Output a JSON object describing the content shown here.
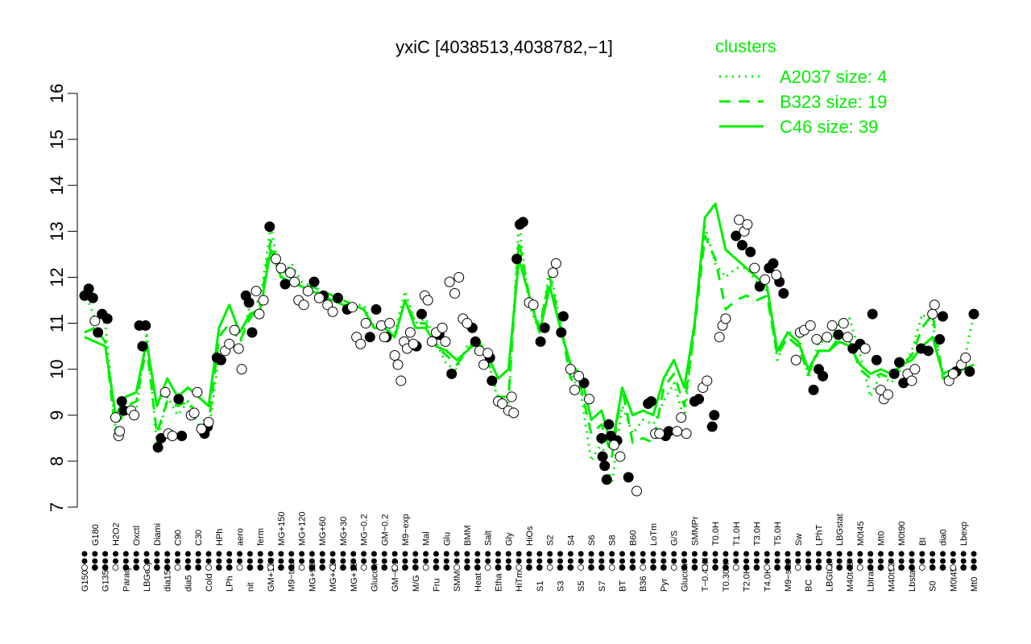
{
  "chart_data": {
    "type": "line",
    "title": "yxiC [4038513,4038782,−1]",
    "xlabel": "",
    "ylabel": "",
    "ylim": [
      7,
      16
    ],
    "yticks": [
      7,
      8,
      9,
      10,
      11,
      12,
      13,
      14,
      15,
      16
    ],
    "grid": false,
    "legend": {
      "position": "top-right",
      "title": "clusters",
      "color": "#00ee00",
      "entries": [
        {
          "label": "A2037 size: 4",
          "style": "dotted"
        },
        {
          "label": "B323 size: 19",
          "style": "dashed"
        },
        {
          "label": "C46 size: 39",
          "style": "solid"
        }
      ]
    },
    "x_tick_labels": [
      "G150",
      "G180",
      "G135",
      "H2O2",
      "Paraq",
      "Oxctl",
      "LBGexp",
      "Diami",
      "dia15",
      "C90",
      "dia5",
      "C30",
      "Cold",
      "HPh",
      "LPh",
      "aero",
      "nit",
      "ferm",
      "GM+150",
      "MG+150",
      "M9−tran",
      "MG+120",
      "MG+90",
      "MG+60",
      "MG+45",
      "MG+30",
      "MG+15",
      "MG−0.2",
      "Glucon",
      "GM−0.2",
      "GM−0.1",
      "M9−exp",
      "M/G",
      "Mal",
      "Fru",
      "Glu",
      "SMM",
      "BMM",
      "Heat",
      "Salt",
      "Etha",
      "Gly",
      "HiTm",
      "HiOs",
      "S1",
      "S2",
      "S3",
      "S4",
      "S5",
      "S6",
      "S7",
      "S8",
      "BT",
      "B60",
      "B36",
      "LoTm",
      "Pyr",
      "G/S",
      "Glucon",
      "SMMPr",
      "T−0.40H",
      "T0.0H",
      "T0.30H",
      "T1.0H",
      "T2.0H",
      "T3.0H",
      "T4.0H",
      "T5.0H",
      "M9−stat",
      "Sw",
      "BC",
      "LPhT",
      "LBGtran",
      "LBGstat",
      "M40t45",
      "M0t45",
      "Lbtran",
      "Mt0",
      "M40t90",
      "M0t90",
      "Lbstat",
      "BI",
      "S0",
      "dia0",
      "M0t45",
      "Lbexp",
      "Mt0"
    ],
    "x": [
      1,
      2,
      3,
      4,
      5,
      6,
      7,
      8,
      9,
      10,
      11,
      12,
      13,
      14,
      15,
      16,
      17,
      18,
      19,
      20,
      21,
      22,
      23,
      24,
      25,
      26,
      27,
      28,
      29,
      30,
      31,
      32,
      33,
      34,
      35,
      36,
      37,
      38,
      39,
      40,
      41,
      42,
      43,
      44,
      45,
      46,
      47,
      48,
      49,
      50,
      51,
      52,
      53,
      54,
      55,
      56,
      57,
      58,
      59,
      60,
      61,
      62,
      63,
      64,
      65,
      66,
      67,
      68,
      69,
      70,
      71,
      72,
      73,
      74,
      75,
      76,
      77,
      78,
      79,
      80,
      81,
      82,
      83,
      84,
      85,
      86,
      87
    ],
    "series": [
      {
        "style": "dotted",
        "values": [
          11.7,
          11.1,
          11.0,
          8.7,
          9.2,
          9.1,
          10.8,
          8.4,
          9.4,
          9.0,
          9.3,
          8.8,
          8.6,
          10.3,
          10.5,
          10.5,
          11.4,
          11.5,
          13.1,
          12.0,
          12.3,
          11.9,
          11.8,
          11.6,
          11.5,
          11.5,
          11.4,
          11.4,
          10.9,
          10.9,
          10.8,
          11.7,
          11.0,
          11.1,
          10.6,
          10.1,
          10.0,
          10.5,
          10.7,
          10.2,
          9.3,
          9.2,
          13.2,
          11.4,
          10.8,
          12.2,
          11.0,
          9.9,
          9.5,
          8.0,
          8.4,
          7.5,
          9.2,
          8.6,
          8.9,
          8.8,
          9.3,
          9.7,
          8.9,
          11.0,
          13.1,
          12.3,
          12.0,
          12.2,
          12.2,
          11.9,
          11.7,
          10.2,
          10.8,
          10.8,
          9.8,
          10.6,
          10.6,
          11.0,
          11.1,
          10.3,
          9.4,
          9.9,
          9.7,
          10.0,
          10.4,
          11.2,
          11.0,
          9.9,
          9.9,
          10.1,
          11.2
        ],
        "color": "#00ee00"
      },
      {
        "style": "dashed",
        "values": [
          10.8,
          10.9,
          10.6,
          8.6,
          9.2,
          9.3,
          10.5,
          8.6,
          9.3,
          9.2,
          9.3,
          9.0,
          8.8,
          10.7,
          11.0,
          10.6,
          11.1,
          11.4,
          12.8,
          12.0,
          12.0,
          11.8,
          11.8,
          11.7,
          11.6,
          11.5,
          11.4,
          11.3,
          10.9,
          10.9,
          10.7,
          11.5,
          11.0,
          11.0,
          10.5,
          10.3,
          10.1,
          10.4,
          10.7,
          10.2,
          9.4,
          9.4,
          12.8,
          11.6,
          10.9,
          12.0,
          11.0,
          9.8,
          9.6,
          8.6,
          8.8,
          8.1,
          9.6,
          8.4,
          8.5,
          8.4,
          9.6,
          9.9,
          9.2,
          10.9,
          12.9,
          12.4,
          11.3,
          11.5,
          11.6,
          11.5,
          11.6,
          10.3,
          10.7,
          10.5,
          9.9,
          10.4,
          10.4,
          10.7,
          10.6,
          10.0,
          9.8,
          9.9,
          9.8,
          10.1,
          10.3,
          10.9,
          11.2,
          9.8,
          9.9,
          10.0,
          10.1
        ],
        "color": "#00ee00"
      },
      {
        "style": "solid",
        "values": [
          10.7,
          10.6,
          10.5,
          9.0,
          9.4,
          9.5,
          10.6,
          9.2,
          9.8,
          9.4,
          9.6,
          9.4,
          9.2,
          10.9,
          11.4,
          10.8,
          11.2,
          11.3,
          12.6,
          12.0,
          11.9,
          11.8,
          11.7,
          11.6,
          11.5,
          11.4,
          11.4,
          11.3,
          10.9,
          10.9,
          10.7,
          11.5,
          10.9,
          10.9,
          10.5,
          10.4,
          10.2,
          10.4,
          10.6,
          10.3,
          9.8,
          10.0,
          12.4,
          11.6,
          10.8,
          11.8,
          10.9,
          10.1,
          9.9,
          8.9,
          9.1,
          8.3,
          9.6,
          9.0,
          9.1,
          9.0,
          9.8,
          10.2,
          9.6,
          11.0,
          13.3,
          13.6,
          12.6,
          12.4,
          12.2,
          12.0,
          11.8,
          10.4,
          10.8,
          10.6,
          10.0,
          10.4,
          10.4,
          10.6,
          10.5,
          10.1,
          9.9,
          10.0,
          9.9,
          10.1,
          10.2,
          10.5,
          10.7,
          9.9,
          10.0,
          10.0,
          10.1
        ],
        "color": "#00ee00"
      }
    ],
    "points_filled": [
      {
        "x": 1,
        "y": 11.6
      },
      {
        "x": 1.4,
        "y": 11.75
      },
      {
        "x": 1.8,
        "y": 11.55
      },
      {
        "x": 2.3,
        "y": 10.8
      },
      {
        "x": 2.7,
        "y": 11.2
      },
      {
        "x": 3.2,
        "y": 11.1
      },
      {
        "x": 4.6,
        "y": 9.3
      },
      {
        "x": 4.8,
        "y": 9.1
      },
      {
        "x": 6.3,
        "y": 10.95
      },
      {
        "x": 6.6,
        "y": 10.5
      },
      {
        "x": 6.9,
        "y": 10.95
      },
      {
        "x": 8.1,
        "y": 8.3
      },
      {
        "x": 8.4,
        "y": 8.5
      },
      {
        "x": 10.1,
        "y": 9.35
      },
      {
        "x": 10.4,
        "y": 8.55
      },
      {
        "x": 12.6,
        "y": 8.6
      },
      {
        "x": 12.9,
        "y": 8.75
      },
      {
        "x": 13.8,
        "y": 10.25
      },
      {
        "x": 14.2,
        "y": 10.2
      },
      {
        "x": 16.6,
        "y": 11.6
      },
      {
        "x": 16.9,
        "y": 11.45
      },
      {
        "x": 17.2,
        "y": 10.8
      },
      {
        "x": 18.9,
        "y": 13.1
      },
      {
        "x": 20.4,
        "y": 11.85
      },
      {
        "x": 23.2,
        "y": 11.9
      },
      {
        "x": 24.1,
        "y": 11.6
      },
      {
        "x": 25.5,
        "y": 11.55
      },
      {
        "x": 26.4,
        "y": 11.3
      },
      {
        "x": 28.6,
        "y": 10.7
      },
      {
        "x": 29.2,
        "y": 11.3
      },
      {
        "x": 30.2,
        "y": 10.7
      },
      {
        "x": 33.1,
        "y": 10.5
      },
      {
        "x": 33.6,
        "y": 11.2
      },
      {
        "x": 35.3,
        "y": 10.75
      },
      {
        "x": 36.5,
        "y": 9.9
      },
      {
        "x": 38.5,
        "y": 10.9
      },
      {
        "x": 38.8,
        "y": 10.6
      },
      {
        "x": 40.2,
        "y": 10.25
      },
      {
        "x": 40.4,
        "y": 9.75
      },
      {
        "x": 43.1,
        "y": 13.15
      },
      {
        "x": 43.4,
        "y": 13.2
      },
      {
        "x": 42.8,
        "y": 12.4
      },
      {
        "x": 45.1,
        "y": 10.6
      },
      {
        "x": 45.5,
        "y": 10.9
      },
      {
        "x": 47.3,
        "y": 11.15
      },
      {
        "x": 47.1,
        "y": 10.8
      },
      {
        "x": 49.3,
        "y": 9.7
      },
      {
        "x": 51.0,
        "y": 8.5
      },
      {
        "x": 51.1,
        "y": 8.1
      },
      {
        "x": 51.3,
        "y": 7.9
      },
      {
        "x": 51.5,
        "y": 7.6
      },
      {
        "x": 51.7,
        "y": 8.8
      },
      {
        "x": 51.9,
        "y": 8.55
      },
      {
        "x": 52.5,
        "y": 8.45
      },
      {
        "x": 53.6,
        "y": 7.65
      },
      {
        "x": 55.5,
        "y": 9.25
      },
      {
        "x": 55.8,
        "y": 9.3
      },
      {
        "x": 57.2,
        "y": 8.55
      },
      {
        "x": 57.5,
        "y": 8.65
      },
      {
        "x": 60.0,
        "y": 9.3
      },
      {
        "x": 60.4,
        "y": 9.35
      },
      {
        "x": 61.7,
        "y": 8.75
      },
      {
        "x": 61.9,
        "y": 9.0
      },
      {
        "x": 64.0,
        "y": 12.9
      },
      {
        "x": 64.6,
        "y": 12.7
      },
      {
        "x": 65.4,
        "y": 12.55
      },
      {
        "x": 66.3,
        "y": 11.8
      },
      {
        "x": 67.2,
        "y": 12.2
      },
      {
        "x": 67.6,
        "y": 12.3
      },
      {
        "x": 68.2,
        "y": 11.9
      },
      {
        "x": 68.6,
        "y": 11.65
      },
      {
        "x": 72.4,
        "y": 9.85
      },
      {
        "x": 72.0,
        "y": 10.0
      },
      {
        "x": 71.5,
        "y": 9.55
      },
      {
        "x": 73.9,
        "y": 10.75
      },
      {
        "x": 75.3,
        "y": 10.45
      },
      {
        "x": 76.0,
        "y": 10.55
      },
      {
        "x": 77.2,
        "y": 11.2
      },
      {
        "x": 77.6,
        "y": 10.2
      },
      {
        "x": 79.3,
        "y": 9.9
      },
      {
        "x": 79.8,
        "y": 10.15
      },
      {
        "x": 80.2,
        "y": 9.7
      },
      {
        "x": 81.9,
        "y": 10.45
      },
      {
        "x": 82.6,
        "y": 10.4
      },
      {
        "x": 83.7,
        "y": 10.65
      },
      {
        "x": 84.0,
        "y": 11.15
      },
      {
        "x": 85.3,
        "y": 9.95
      },
      {
        "x": 86.6,
        "y": 9.95
      },
      {
        "x": 87.0,
        "y": 11.2
      }
    ],
    "points_open": [
      {
        "x": 2.0,
        "y": 11.05
      },
      {
        "x": 4.0,
        "y": 8.95
      },
      {
        "x": 4.3,
        "y": 8.55
      },
      {
        "x": 4.4,
        "y": 8.65
      },
      {
        "x": 5.5,
        "y": 9.1
      },
      {
        "x": 5.8,
        "y": 9.0
      },
      {
        "x": 8.8,
        "y": 9.5
      },
      {
        "x": 9.1,
        "y": 8.6
      },
      {
        "x": 9.5,
        "y": 8.55
      },
      {
        "x": 11.3,
        "y": 9.0
      },
      {
        "x": 11.6,
        "y": 9.05
      },
      {
        "x": 11.9,
        "y": 9.5
      },
      {
        "x": 12.3,
        "y": 8.7
      },
      {
        "x": 13.0,
        "y": 8.85
      },
      {
        "x": 14.6,
        "y": 10.4
      },
      {
        "x": 15.0,
        "y": 10.55
      },
      {
        "x": 15.5,
        "y": 10.85
      },
      {
        "x": 15.9,
        "y": 10.45
      },
      {
        "x": 16.2,
        "y": 10.0
      },
      {
        "x": 17.6,
        "y": 11.7
      },
      {
        "x": 17.9,
        "y": 11.2
      },
      {
        "x": 18.3,
        "y": 11.5
      },
      {
        "x": 19.5,
        "y": 12.4
      },
      {
        "x": 20.0,
        "y": 12.2
      },
      {
        "x": 20.9,
        "y": 12.1
      },
      {
        "x": 21.3,
        "y": 11.9
      },
      {
        "x": 21.7,
        "y": 11.5
      },
      {
        "x": 22.2,
        "y": 11.4
      },
      {
        "x": 22.6,
        "y": 11.7
      },
      {
        "x": 23.7,
        "y": 11.55
      },
      {
        "x": 24.5,
        "y": 11.4
      },
      {
        "x": 25.0,
        "y": 11.25
      },
      {
        "x": 26.9,
        "y": 11.35
      },
      {
        "x": 27.3,
        "y": 10.7
      },
      {
        "x": 27.7,
        "y": 10.55
      },
      {
        "x": 28.2,
        "y": 11.0
      },
      {
        "x": 29.7,
        "y": 10.95
      },
      {
        "x": 30.0,
        "y": 10.7
      },
      {
        "x": 30.5,
        "y": 11.0
      },
      {
        "x": 31.0,
        "y": 10.3
      },
      {
        "x": 31.3,
        "y": 10.1
      },
      {
        "x": 31.6,
        "y": 9.75
      },
      {
        "x": 31.9,
        "y": 10.6
      },
      {
        "x": 32.2,
        "y": 10.45
      },
      {
        "x": 32.5,
        "y": 10.8
      },
      {
        "x": 32.8,
        "y": 10.55
      },
      {
        "x": 33.9,
        "y": 11.6
      },
      {
        "x": 34.2,
        "y": 11.5
      },
      {
        "x": 34.6,
        "y": 10.6
      },
      {
        "x": 35.0,
        "y": 10.8
      },
      {
        "x": 35.6,
        "y": 10.9
      },
      {
        "x": 35.9,
        "y": 10.6
      },
      {
        "x": 36.3,
        "y": 11.9
      },
      {
        "x": 36.8,
        "y": 11.65
      },
      {
        "x": 37.2,
        "y": 12.0
      },
      {
        "x": 37.6,
        "y": 11.1
      },
      {
        "x": 38.0,
        "y": 11.0
      },
      {
        "x": 39.2,
        "y": 10.4
      },
      {
        "x": 39.6,
        "y": 10.1
      },
      {
        "x": 40.0,
        "y": 10.35
      },
      {
        "x": 41.0,
        "y": 9.3
      },
      {
        "x": 41.4,
        "y": 9.25
      },
      {
        "x": 42.0,
        "y": 9.1
      },
      {
        "x": 42.3,
        "y": 9.4
      },
      {
        "x": 42.5,
        "y": 9.05
      },
      {
        "x": 44.0,
        "y": 11.45
      },
      {
        "x": 44.4,
        "y": 11.4
      },
      {
        "x": 46.3,
        "y": 12.1
      },
      {
        "x": 46.6,
        "y": 12.3
      },
      {
        "x": 48.0,
        "y": 10.0
      },
      {
        "x": 48.4,
        "y": 9.55
      },
      {
        "x": 48.8,
        "y": 9.85
      },
      {
        "x": 49.8,
        "y": 9.35
      },
      {
        "x": 52.2,
        "y": 8.35
      },
      {
        "x": 52.8,
        "y": 8.1
      },
      {
        "x": 54.4,
        "y": 7.35
      },
      {
        "x": 56.2,
        "y": 8.6
      },
      {
        "x": 56.6,
        "y": 8.6
      },
      {
        "x": 58.3,
        "y": 8.65
      },
      {
        "x": 58.7,
        "y": 8.95
      },
      {
        "x": 59.2,
        "y": 8.6
      },
      {
        "x": 60.8,
        "y": 9.6
      },
      {
        "x": 61.2,
        "y": 9.75
      },
      {
        "x": 62.4,
        "y": 10.7
      },
      {
        "x": 62.7,
        "y": 10.95
      },
      {
        "x": 63.0,
        "y": 11.1
      },
      {
        "x": 64.3,
        "y": 13.25
      },
      {
        "x": 64.8,
        "y": 13.0
      },
      {
        "x": 65.1,
        "y": 13.15
      },
      {
        "x": 65.8,
        "y": 12.2
      },
      {
        "x": 66.8,
        "y": 11.95
      },
      {
        "x": 67.9,
        "y": 12.05
      },
      {
        "x": 69.8,
        "y": 10.2
      },
      {
        "x": 70.2,
        "y": 10.8
      },
      {
        "x": 70.6,
        "y": 10.85
      },
      {
        "x": 71.2,
        "y": 10.95
      },
      {
        "x": 71.8,
        "y": 10.65
      },
      {
        "x": 72.8,
        "y": 10.7
      },
      {
        "x": 73.3,
        "y": 10.95
      },
      {
        "x": 74.4,
        "y": 11.0
      },
      {
        "x": 74.8,
        "y": 10.7
      },
      {
        "x": 76.5,
        "y": 10.45
      },
      {
        "x": 78.0,
        "y": 9.55
      },
      {
        "x": 78.3,
        "y": 9.35
      },
      {
        "x": 78.7,
        "y": 9.45
      },
      {
        "x": 80.6,
        "y": 9.9
      },
      {
        "x": 81.0,
        "y": 9.75
      },
      {
        "x": 81.3,
        "y": 10.0
      },
      {
        "x": 83.2,
        "y": 11.4
      },
      {
        "x": 83.0,
        "y": 11.2
      },
      {
        "x": 84.6,
        "y": 9.75
      },
      {
        "x": 85.0,
        "y": 9.9
      },
      {
        "x": 85.8,
        "y": 10.1
      },
      {
        "x": 86.2,
        "y": 10.25
      }
    ]
  }
}
